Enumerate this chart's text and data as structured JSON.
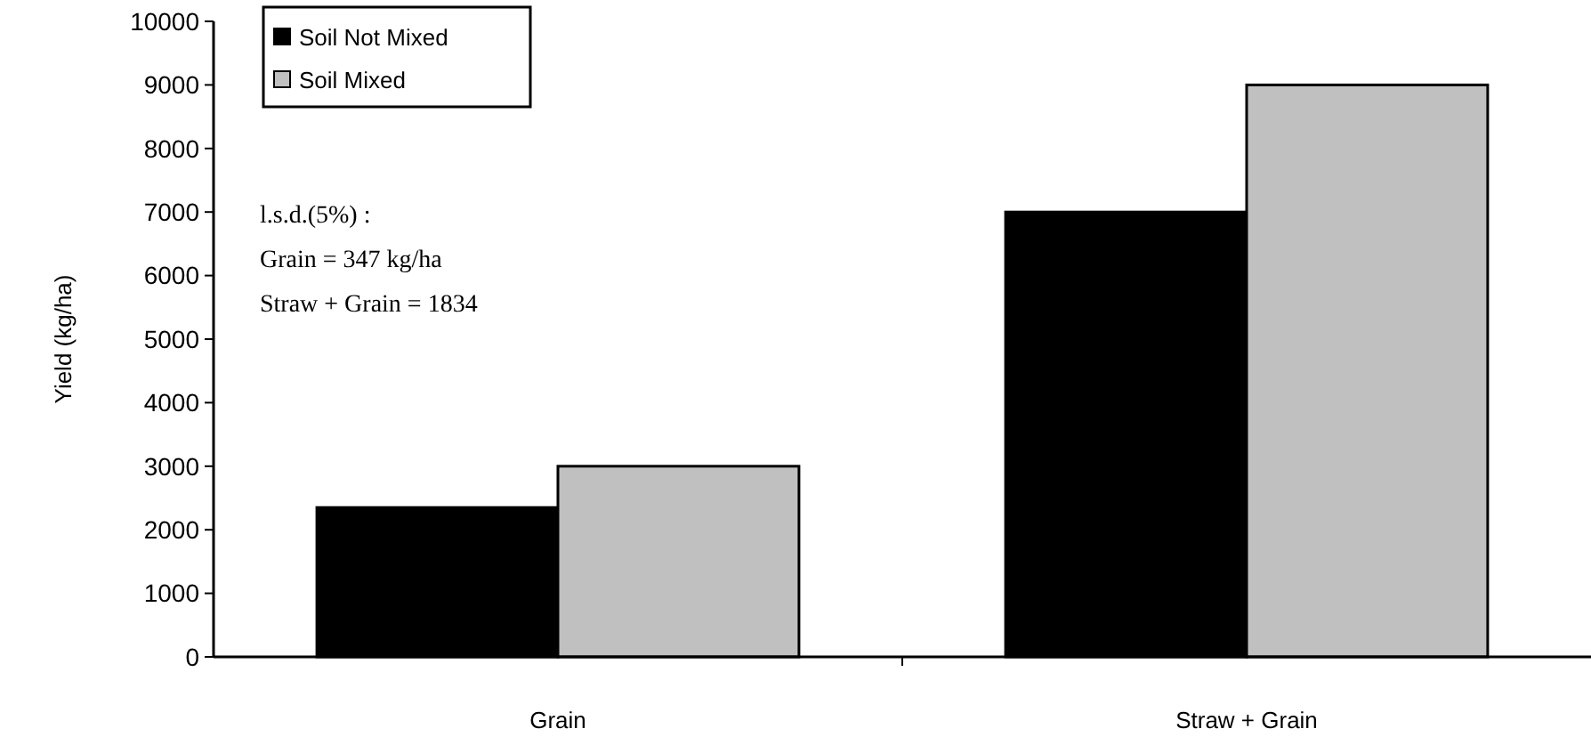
{
  "chart_data": {
    "type": "bar",
    "ylabel": "Yield (kg/ha)",
    "categories": [
      "Grain",
      "Straw + Grain"
    ],
    "series": [
      {
        "name": "Soil Not Mixed",
        "color": "#000000",
        "values": [
          2350,
          7000
        ]
      },
      {
        "name": "Soil Mixed",
        "color": "#c0c0c0",
        "values": [
          3000,
          9000
        ]
      }
    ],
    "ylim": [
      0,
      10000
    ],
    "yticks": [
      0,
      1000,
      2000,
      3000,
      4000,
      5000,
      6000,
      7000,
      8000,
      9000,
      10000
    ],
    "legend": "top left",
    "annotations": [
      "l.s.d.(5%) :",
      "Grain = 347 kg/ha",
      "Straw + Grain = 1834"
    ]
  }
}
